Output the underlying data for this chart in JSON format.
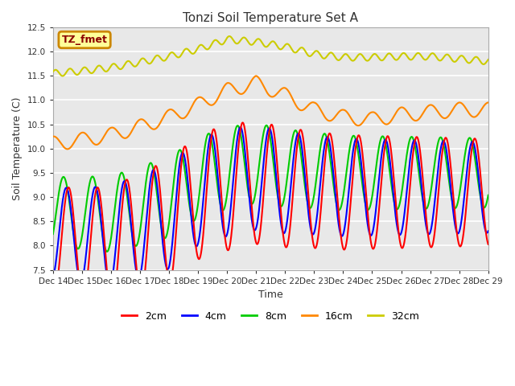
{
  "title": "Tonzi Soil Temperature Set A",
  "xlabel": "Time",
  "ylabel": "Soil Temperature (C)",
  "ylim": [
    7.5,
    12.5
  ],
  "xlim": [
    0,
    15
  ],
  "x_tick_labels": [
    "Dec 14",
    "Dec 15",
    "Dec 16",
    "Dec 17",
    "Dec 18",
    "Dec 19",
    "Dec 20",
    "Dec 21",
    "Dec 22",
    "Dec 23",
    "Dec 24",
    "Dec 25",
    "Dec 26",
    "Dec 27",
    "Dec 28",
    "Dec 29"
  ],
  "legend_label": "TZ_fmet",
  "legend_text_color": "#8b0000",
  "legend_bg_color": "#ffff99",
  "legend_border_color": "#cc8800",
  "colors": {
    "2cm": "#ff0000",
    "4cm": "#0000ff",
    "8cm": "#00cc00",
    "16cm": "#ff8800",
    "32cm": "#cccc00"
  },
  "background_color": "#e8e8e8",
  "grid_color": "#ffffff"
}
